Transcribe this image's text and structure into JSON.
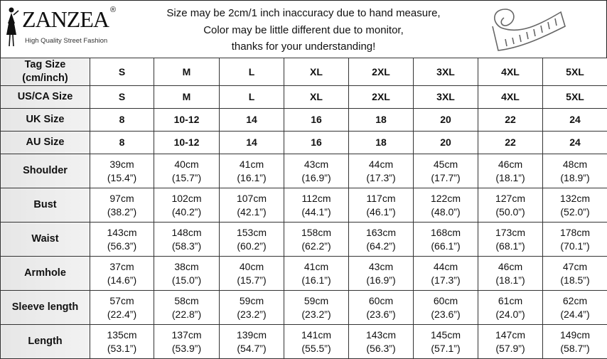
{
  "header": {
    "logo_text": "ZANZEA",
    "logo_tagline": "High Quality Street Fashion",
    "notice_lines": [
      "Size may be 2cm/1 inch inaccuracy due to hand measure,",
      "Color may be little different due to monitor,",
      "thanks for your understanding!"
    ],
    "icon": "measuring-tape-icon"
  },
  "size_rows": [
    {
      "label": "Tag Size (cm/inch)",
      "values": [
        "S",
        "M",
        "L",
        "XL",
        "2XL",
        "3XL",
        "4XL",
        "5XL"
      ]
    },
    {
      "label": "US/CA Size",
      "values": [
        "S",
        "M",
        "L",
        "XL",
        "2XL",
        "3XL",
        "4XL",
        "5XL"
      ]
    },
    {
      "label": "UK Size",
      "values": [
        "8",
        "10-12",
        "14",
        "16",
        "18",
        "20",
        "22",
        "24"
      ]
    },
    {
      "label": "AU Size",
      "values": [
        "8",
        "10-12",
        "14",
        "16",
        "18",
        "20",
        "22",
        "24"
      ]
    }
  ],
  "measure_rows": [
    {
      "label": "Shoulder",
      "cm": [
        "39cm",
        "40cm",
        "41cm",
        "43cm",
        "44cm",
        "45cm",
        "46cm",
        "48cm"
      ],
      "inch": [
        "(15.4”)",
        "(15.7”)",
        "(16.1”)",
        "(16.9”)",
        "(17.3”)",
        "(17.7”)",
        "(18.1”)",
        "(18.9”)"
      ]
    },
    {
      "label": "Bust",
      "cm": [
        "97cm",
        "102cm",
        "107cm",
        "112cm",
        "117cm",
        "122cm",
        "127cm",
        "132cm"
      ],
      "inch": [
        "(38.2”)",
        "(40.2”)",
        "(42.1”)",
        "(44.1”)",
        "(46.1”)",
        "(48.0”)",
        "(50.0”)",
        "(52.0”)"
      ]
    },
    {
      "label": "Waist",
      "cm": [
        "143cm",
        "148cm",
        "153cm",
        "158cm",
        "163cm",
        "168cm",
        "173cm",
        "178cm"
      ],
      "inch": [
        "(56.3”)",
        "(58.3”)",
        "(60.2”)",
        "(62.2”)",
        "(64.2”)",
        "(66.1”)",
        "(68.1”)",
        "(70.1”)"
      ]
    },
    {
      "label": "Armhole",
      "cm": [
        "37cm",
        "38cm",
        "40cm",
        "41cm",
        "43cm",
        "44cm",
        "46cm",
        "47cm"
      ],
      "inch": [
        "(14.6”)",
        "(15.0”)",
        "(15.7”)",
        "(16.1”)",
        "(16.9”)",
        "(17.3”)",
        "(18.1”)",
        "(18.5”)"
      ]
    },
    {
      "label": "Sleeve length",
      "cm": [
        "57cm",
        "58cm",
        "59cm",
        "59cm",
        "60cm",
        "60cm",
        "61cm",
        "62cm"
      ],
      "inch": [
        "(22.4”)",
        "(22.8”)",
        "(23.2”)",
        "(23.2”)",
        "(23.6”)",
        "(23.6”)",
        "(24.0”)",
        "(24.4”)"
      ]
    },
    {
      "label": "Length",
      "cm": [
        "135cm",
        "137cm",
        "139cm",
        "141cm",
        "143cm",
        "145cm",
        "147cm",
        "149cm"
      ],
      "inch": [
        "(53.1”)",
        "(53.9”)",
        "(54.7”)",
        "(55.5”)",
        "(56.3”)",
        "(57.1”)",
        "(57.9”)",
        "(58.7”)"
      ]
    }
  ]
}
